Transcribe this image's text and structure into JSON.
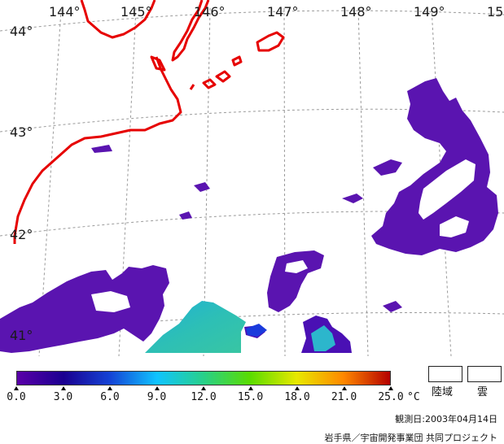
{
  "map": {
    "longitude_labels": [
      "144°",
      "145°",
      "146°",
      "147°",
      "148°",
      "149°",
      "15"
    ],
    "latitude_labels": [
      "44°",
      "43°",
      "42°",
      "41°"
    ],
    "coastline_color": "#e60000",
    "grid_color": "#9a9a9a"
  },
  "legend": {
    "ticks": [
      "0.0",
      "3.0",
      "6.0",
      "9.0",
      "12.0",
      "15.0",
      "18.0",
      "21.0",
      "25.0"
    ],
    "unit": "°C",
    "gradient_colors": [
      "#5a00a8",
      "#1a0090",
      "#1444d6",
      "#10c4ff",
      "#28d08a",
      "#5adc00",
      "#e8e800",
      "#ff8800",
      "#b40000"
    ],
    "land_label": "陸域",
    "cloud_label": "雲"
  },
  "observation_date": "観測日:2003年04月14日",
  "credit": "岩手県／宇宙開発事業団 共同プロジェクト"
}
